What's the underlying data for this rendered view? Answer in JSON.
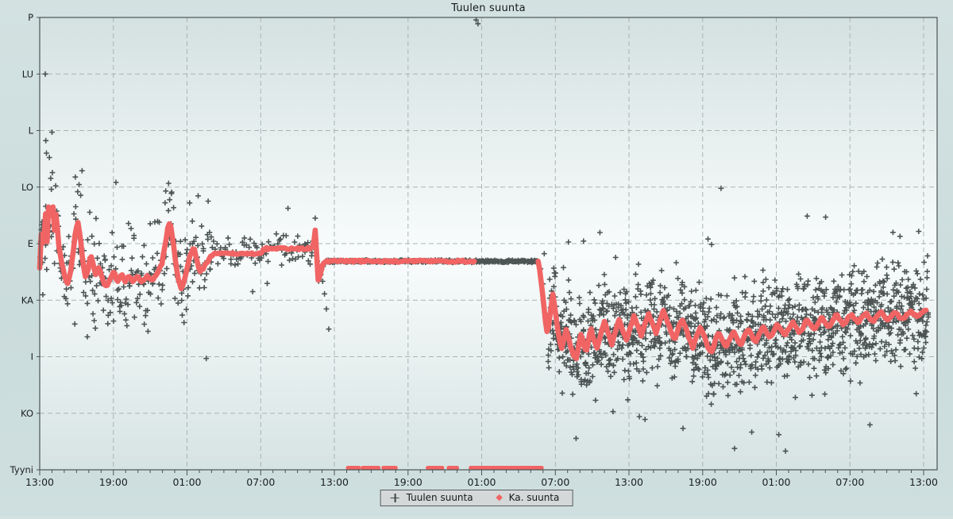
{
  "title": "Tuulen suunta",
  "legend": {
    "items": [
      {
        "marker": "plus",
        "label": "Tuulen suunta"
      },
      {
        "marker": "diamond",
        "label": "Ka. suunta"
      }
    ]
  },
  "colors": {
    "page_background": "#cedddd",
    "plot_gradient_top": "#d4e1e1",
    "plot_gradient_middle": "#f9fcfc",
    "plot_gradient_bottom": "#d6e3e3",
    "grid": "#a9b4b4",
    "axis": "#4b5454",
    "scatter_marks": "#3e4545",
    "average_line": "#f16464",
    "text": "#1b1f1f",
    "legend_background": "#d4d8d8",
    "legend_border": "#565d5d"
  },
  "chart_data": {
    "type": "scatter",
    "title": "Tuulen suunta",
    "description": "Wind direction over 72 hours. Dark plus marks = instantaneous wind direction (Tuulen suunta); red dotted line = average direction (Ka. suunta); red marks on baseline = calm (Tyyni) periods.",
    "x_axis": {
      "unit": "time of day",
      "span_hours": 72,
      "major_tick_hours": 6,
      "minor_tick_hours": 1,
      "tick_labels": [
        "13:00",
        "19:00",
        "01:00",
        "07:00",
        "13:00",
        "19:00",
        "01:00",
        "07:00",
        "13:00",
        "19:00",
        "01:00",
        "07:00",
        "13:00"
      ]
    },
    "y_axis": {
      "categories_top_to_bottom": [
        "P",
        "LU",
        "L",
        "LO",
        "E",
        "KA",
        "I",
        "KO",
        "Tyyni"
      ],
      "degrees_top_to_bottom": [
        360,
        315,
        270,
        225,
        180,
        135,
        90,
        45,
        0
      ],
      "grid": "dashed"
    },
    "series": [
      {
        "name": "Tuulen suunta",
        "marker": "plus",
        "color": "#3e4545",
        "scatter_segments": [
          {
            "t0": 0,
            "t1": 14,
            "dt": 0.05,
            "spread_deg": 46,
            "outlier_rate": 0.05,
            "outlier_extra_deg": 55
          },
          {
            "t0": 14,
            "t1": 22.5,
            "dt": 0.09,
            "spread_deg": 16,
            "outlier_rate": 0.04,
            "outlier_extra_deg": 60
          },
          {
            "t0": 22.5,
            "t1": 40.6,
            "dt": 0.045,
            "spread_deg": 1.2,
            "outlier_rate": 0.005,
            "outlier_extra_deg": 40
          },
          {
            "t0": 41.4,
            "t1": 72.4,
            "dt": 0.021,
            "spread_deg": 46,
            "outlier_rate": 0.055,
            "outlier_extra_deg": 52
          }
        ],
        "extra_points_t_deg": [
          [
            0.45,
            315
          ],
          [
            0.5,
            262
          ],
          [
            0.55,
            252
          ],
          [
            0.9,
            232
          ],
          [
            1.3,
            226
          ],
          [
            2.9,
            233
          ],
          [
            3.2,
            227
          ],
          [
            3.45,
            238
          ],
          [
            10.5,
            228
          ],
          [
            10.75,
            221
          ],
          [
            23.05,
            150
          ],
          [
            23.2,
            140
          ],
          [
            23.35,
            128
          ],
          [
            23.55,
            112
          ],
          [
            35.55,
            358
          ],
          [
            35.7,
            355
          ],
          [
            40.8,
            160
          ],
          [
            41.0,
            148
          ],
          [
            41.1,
            172
          ],
          [
            44.3,
            182
          ],
          [
            52.4,
            33
          ],
          [
            55.5,
            224
          ],
          [
            56.6,
            17
          ],
          [
            58.0,
            30
          ],
          [
            60.2,
            28
          ],
          [
            69.5,
            189
          ]
        ]
      },
      {
        "name": "Ka. suunta",
        "marker": "dot",
        "color": "#f16464",
        "line1_keypoints_t_deg": [
          [
            0,
            160
          ],
          [
            0.15,
            195
          ],
          [
            0.3,
            170
          ],
          [
            0.45,
            210
          ],
          [
            0.6,
            182
          ],
          [
            0.75,
            215
          ],
          [
            0.9,
            196
          ],
          [
            1.05,
            213
          ],
          [
            1.2,
            190
          ],
          [
            1.35,
            206
          ],
          [
            1.5,
            183
          ],
          [
            1.65,
            172
          ],
          [
            1.85,
            162
          ],
          [
            2.05,
            153
          ],
          [
            2.3,
            148
          ],
          [
            2.55,
            160
          ],
          [
            2.75,
            176
          ],
          [
            2.95,
            192
          ],
          [
            3.15,
            197
          ],
          [
            3.35,
            181
          ],
          [
            3.55,
            163
          ],
          [
            3.75,
            152
          ],
          [
            3.95,
            160
          ],
          [
            4.15,
            172
          ],
          [
            4.35,
            164
          ],
          [
            4.55,
            155
          ],
          [
            4.85,
            161
          ],
          [
            5.15,
            150
          ],
          [
            5.45,
            145
          ],
          [
            5.75,
            152
          ],
          [
            6.05,
            158
          ],
          [
            6.35,
            149
          ],
          [
            6.65,
            156
          ],
          [
            6.95,
            149
          ],
          [
            7.25,
            155
          ],
          [
            7.55,
            149
          ],
          [
            7.95,
            154
          ],
          [
            8.35,
            149
          ],
          [
            8.75,
            154
          ],
          [
            9.15,
            151
          ],
          [
            9.55,
            156
          ],
          [
            9.95,
            164
          ],
          [
            10.25,
            181
          ],
          [
            10.5,
            196
          ],
          [
            10.7,
            193
          ],
          [
            10.9,
            180
          ],
          [
            11.1,
            163
          ],
          [
            11.3,
            150
          ],
          [
            11.55,
            144
          ],
          [
            11.8,
            152
          ],
          [
            12.05,
            163
          ],
          [
            12.3,
            172
          ],
          [
            12.55,
            177
          ],
          [
            12.8,
            168
          ],
          [
            13.0,
            158
          ],
          [
            13.3,
            160
          ],
          [
            13.6,
            165
          ],
          [
            13.9,
            169
          ],
          [
            14.2,
            172
          ],
          [
            15,
            172
          ],
          [
            16,
            172
          ],
          [
            17,
            172
          ],
          [
            18.0,
            172
          ],
          [
            18.3,
            176
          ],
          [
            19,
            176
          ],
          [
            20,
            176
          ],
          [
            21,
            176
          ],
          [
            22.0,
            176
          ],
          [
            22.3,
            178
          ],
          [
            22.45,
            192
          ],
          [
            22.58,
            168
          ],
          [
            22.7,
            148
          ],
          [
            22.85,
            156
          ],
          [
            23.05,
            163
          ],
          [
            23.3,
            166
          ],
          [
            24,
            166
          ],
          [
            26,
            166
          ],
          [
            28,
            166
          ],
          [
            30,
            166
          ],
          [
            32,
            166
          ],
          [
            34,
            166
          ],
          [
            35.4,
            166
          ]
        ],
        "line2_keypoints_t_deg": [
          [
            40.6,
            166
          ],
          [
            40.75,
            158
          ],
          [
            40.9,
            146
          ],
          [
            41.05,
            132
          ],
          [
            41.2,
            118
          ],
          [
            41.35,
            108
          ],
          [
            41.5,
            118
          ],
          [
            41.65,
            130
          ],
          [
            41.8,
            140
          ],
          [
            41.95,
            130
          ],
          [
            42.1,
            118
          ],
          [
            42.3,
            106
          ],
          [
            42.5,
            96
          ],
          [
            42.7,
            104
          ],
          [
            42.9,
            112
          ],
          [
            43.1,
            104
          ],
          [
            43.3,
            96
          ],
          [
            43.5,
            90
          ],
          [
            43.7,
            88
          ],
          [
            43.9,
            98
          ],
          [
            44.1,
            108
          ],
          [
            44.3,
            100
          ],
          [
            44.5,
            93
          ],
          [
            44.7,
            103
          ],
          [
            44.9,
            112
          ],
          [
            45.1,
            105
          ],
          [
            45.4,
            97
          ],
          [
            45.7,
            108
          ],
          [
            46,
            118
          ],
          [
            46.3,
            109
          ],
          [
            46.6,
            99
          ],
          [
            46.9,
            110
          ],
          [
            47.2,
            120
          ],
          [
            47.5,
            111
          ],
          [
            47.8,
            103
          ],
          [
            48.1,
            113
          ],
          [
            48.4,
            122
          ],
          [
            48.7,
            115
          ],
          [
            49,
            107
          ],
          [
            49.3,
            116
          ],
          [
            49.6,
            124
          ],
          [
            49.9,
            117
          ],
          [
            50.2,
            109
          ],
          [
            50.5,
            118
          ],
          [
            50.8,
            126
          ],
          [
            51.1,
            119
          ],
          [
            51.4,
            111
          ],
          [
            51.7,
            103
          ],
          [
            52,
            112
          ],
          [
            52.3,
            120
          ],
          [
            52.6,
            113
          ],
          [
            52.9,
            105
          ],
          [
            53.2,
            97
          ],
          [
            53.5,
            106
          ],
          [
            53.8,
            114
          ],
          [
            54.1,
            107
          ],
          [
            54.4,
            99
          ],
          [
            54.7,
            93
          ],
          [
            55,
            102
          ],
          [
            55.3,
            110
          ],
          [
            55.6,
            103
          ],
          [
            55.9,
            97
          ],
          [
            56.2,
            104
          ],
          [
            56.5,
            110
          ],
          [
            56.8,
            105
          ],
          [
            57.1,
            99
          ],
          [
            57.4,
            106
          ],
          [
            57.7,
            112
          ],
          [
            58,
            107
          ],
          [
            58.3,
            101
          ],
          [
            58.6,
            108
          ],
          [
            58.9,
            114
          ],
          [
            59.2,
            109
          ],
          [
            59.5,
            105
          ],
          [
            59.8,
            111
          ],
          [
            60.1,
            116
          ],
          [
            60.4,
            111
          ],
          [
            60.7,
            107
          ],
          [
            61,
            112
          ],
          [
            61.3,
            118
          ],
          [
            61.6,
            113
          ],
          [
            61.9,
            109
          ],
          [
            62.2,
            114
          ],
          [
            62.5,
            120
          ],
          [
            62.8,
            115
          ],
          [
            63.1,
            111
          ],
          [
            63.4,
            117
          ],
          [
            63.7,
            122
          ],
          [
            64,
            117
          ],
          [
            64.3,
            113
          ],
          [
            64.6,
            119
          ],
          [
            64.9,
            124
          ],
          [
            65.2,
            119
          ],
          [
            65.5,
            115
          ],
          [
            65.8,
            120
          ],
          [
            66.1,
            124
          ],
          [
            66.4,
            120
          ],
          [
            66.7,
            117
          ],
          [
            67,
            122
          ],
          [
            67.3,
            125
          ],
          [
            67.6,
            121
          ],
          [
            67.9,
            118
          ],
          [
            68.2,
            122
          ],
          [
            68.5,
            126
          ],
          [
            68.8,
            122
          ],
          [
            69.1,
            119
          ],
          [
            69.4,
            123
          ],
          [
            69.7,
            126
          ],
          [
            70,
            122
          ],
          [
            70.3,
            120
          ],
          [
            70.6,
            123
          ],
          [
            71,
            126
          ],
          [
            71.4,
            122
          ],
          [
            71.8,
            125
          ],
          [
            72.2,
            127
          ]
        ],
        "calm_segments_t": [
          [
            25.1,
            26.0
          ],
          [
            26.3,
            27.6
          ],
          [
            28.0,
            29.0
          ],
          [
            31.6,
            32.8
          ],
          [
            33.3,
            34.0
          ],
          [
            35.1,
            40.9
          ]
        ]
      }
    ]
  }
}
